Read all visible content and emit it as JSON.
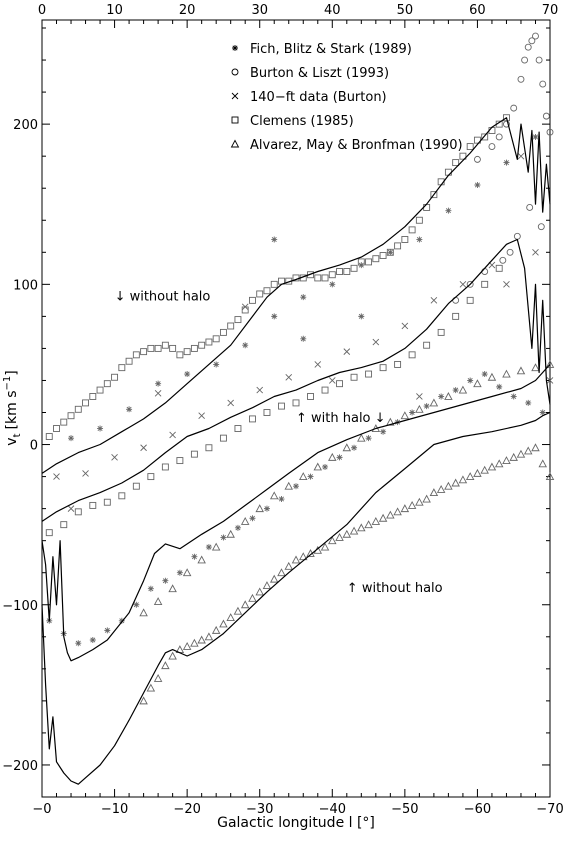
{
  "chart_data": {
    "type": "scatter",
    "title": "",
    "xlabel": "Galactic longitude l [°]",
    "ylabel_main": "v",
    "ylabel_sub": "t",
    "ylabel_unit": "[km s",
    "ylabel_exp": "−1",
    "ylabel_close": "]",
    "xlim": [
      0,
      -70
    ],
    "ylim": [
      -220,
      265
    ],
    "x_ticks": [
      0,
      -10,
      -20,
      -30,
      -40,
      -50,
      -60,
      -70
    ],
    "x_tick_labels": [
      "−0",
      "−10",
      "−20",
      "−30",
      "−40",
      "−50",
      "−60",
      "−70"
    ],
    "y_ticks": [
      -200,
      -100,
      0,
      100,
      200
    ],
    "y_tick_labels": [
      "−200",
      "−100",
      "0",
      "100",
      "200"
    ],
    "top_axis": {
      "ticks": [
        0,
        10,
        20,
        30,
        40,
        50,
        60,
        70
      ],
      "labels": [
        "0",
        "10",
        "20",
        "30",
        "40",
        "50",
        "60",
        "70"
      ]
    },
    "legend_position": "top-right",
    "legend": [
      {
        "marker": "asterisk",
        "label": "Fich, Blitz & Stark (1989)"
      },
      {
        "marker": "circle",
        "label": "Burton & Liszt (1993)"
      },
      {
        "marker": "cross",
        "label": "140−ft data (Burton)"
      },
      {
        "marker": "square",
        "label": "Clemens (1985)"
      },
      {
        "marker": "triangle",
        "label": "Alvarez, May & Bronfman (1990)"
      }
    ],
    "annotations": [
      {
        "text": "↓ without halo",
        "x": -10,
        "y": 90
      },
      {
        "text": "↑ with halo ↓",
        "x": -35,
        "y": 14
      },
      {
        "text": "↑ without halo",
        "x": -42,
        "y": -92
      }
    ],
    "lines": [
      {
        "x": [
          0,
          -2,
          -5,
          -8,
          -11,
          -14,
          -17,
          -20,
          -23,
          -26,
          -29,
          -31,
          -33,
          -35,
          -38,
          -41,
          -44,
          -47,
          -50,
          -53,
          -56,
          -59,
          -62,
          -64,
          -65.5,
          -66,
          -67,
          -67.5,
          -68,
          -68.5,
          -69,
          -69.5,
          -70
        ],
        "y": [
          -18,
          -12,
          -5,
          0,
          8,
          16,
          26,
          38,
          50,
          62,
          80,
          92,
          100,
          103,
          108,
          112,
          117,
          125,
          136,
          150,
          168,
          182,
          198,
          204,
          178,
          200,
          170,
          196,
          150,
          195,
          145,
          175,
          150
        ]
      },
      {
        "x": [
          0,
          -2,
          -5,
          -8,
          -11,
          -14,
          -17,
          -20,
          -23,
          -26,
          -29,
          -32,
          -35,
          -38,
          -41,
          -44,
          -47,
          -50,
          -53,
          -56,
          -59,
          -62,
          -64,
          -65.5,
          -66.5,
          -67.5,
          -68,
          -68.5,
          -69,
          -69.5,
          -70
        ],
        "y": [
          -48,
          -42,
          -35,
          -30,
          -24,
          -16,
          -5,
          5,
          10,
          17,
          23,
          30,
          34,
          40,
          45,
          48,
          52,
          60,
          72,
          88,
          100,
          115,
          125,
          128,
          110,
          60,
          100,
          45,
          90,
          40,
          25
        ]
      },
      {
        "x": [
          0,
          -0.5,
          -1,
          -1.5,
          -2,
          -2.5,
          -3,
          -3.5,
          -4,
          -5,
          -7,
          -9,
          -12,
          -14,
          -15.5,
          -17,
          -19,
          -22,
          -25,
          -28,
          -31,
          -34,
          -38,
          -42,
          -46,
          -50,
          -54,
          -58,
          -62,
          -66,
          -68,
          -69,
          -70
        ],
        "y": [
          -60,
          -75,
          -110,
          -70,
          -100,
          -60,
          -120,
          -130,
          -135,
          -133,
          -128,
          -122,
          -105,
          -85,
          -68,
          -62,
          -65,
          -56,
          -48,
          -38,
          -28,
          -18,
          -5,
          3,
          10,
          15,
          20,
          25,
          30,
          35,
          40,
          45,
          50
        ]
      },
      {
        "x": [
          0,
          -0.5,
          -1,
          -1.5,
          -2,
          -3,
          -4,
          -5,
          -6,
          -8,
          -10,
          -12,
          -14,
          -16,
          -17,
          -18,
          -20,
          -22,
          -25,
          -28,
          -31,
          -34,
          -38,
          -42,
          -46,
          -50,
          -54,
          -58,
          -62,
          -66,
          -68,
          -69,
          -70
        ],
        "y": [
          -100,
          -150,
          -190,
          -170,
          -198,
          -205,
          -210,
          -212,
          -208,
          -200,
          -188,
          -172,
          -155,
          -138,
          -130,
          -128,
          -132,
          -128,
          -118,
          -105,
          -92,
          -80,
          -65,
          -50,
          -30,
          -15,
          0,
          5,
          8,
          12,
          15,
          18,
          20
        ]
      }
    ],
    "series": [
      {
        "name": "Fich, Blitz & Stark (1989)",
        "marker": "asterisk",
        "x": [
          -1,
          -3,
          -5,
          -7,
          -9,
          -11,
          -13,
          -15,
          -17,
          -19,
          -21,
          -23,
          -25,
          -27,
          -29,
          -31,
          -33,
          -35,
          -37,
          -39,
          -41,
          -43,
          -45,
          -47,
          -49,
          -51,
          -53,
          -55,
          -57,
          -59,
          -61,
          -63,
          -65,
          -67,
          -69,
          -4,
          -8,
          -12,
          -16,
          -20,
          -24,
          -28,
          -32,
          -36,
          -40,
          -44,
          -48,
          -52,
          -56,
          -60,
          -64,
          -68,
          -32,
          -44,
          -36
        ],
        "y": [
          -110,
          -118,
          -124,
          -122,
          -116,
          -110,
          -100,
          -90,
          -85,
          -80,
          -70,
          -64,
          -58,
          -52,
          -46,
          -40,
          -34,
          -26,
          -20,
          -14,
          -8,
          -2,
          4,
          8,
          14,
          20,
          24,
          30,
          34,
          40,
          44,
          36,
          30,
          26,
          20,
          4,
          10,
          22,
          38,
          44,
          50,
          62,
          80,
          92,
          100,
          112,
          120,
          128,
          146,
          162,
          176,
          192,
          128,
          80,
          66
        ]
      },
      {
        "name": "Burton & Liszt (1993)",
        "marker": "circle",
        "x": [
          -60,
          -62,
          -63,
          -64,
          -65,
          -66,
          -66.5,
          -67,
          -67.5,
          -68,
          -68.5,
          -69,
          -69.5,
          -70,
          -61,
          -63.5,
          -64.5,
          -65.5,
          -67.2,
          -68.8,
          -59,
          -57
        ],
        "y": [
          178,
          186,
          192,
          200,
          210,
          228,
          240,
          248,
          252,
          255,
          240,
          225,
          205,
          195,
          108,
          115,
          120,
          130,
          148,
          136,
          100,
          90
        ]
      },
      {
        "name": "140−ft data (Burton)",
        "marker": "cross",
        "x": [
          -2,
          -6,
          -10,
          -14,
          -18,
          -22,
          -26,
          -30,
          -34,
          -38,
          -42,
          -46,
          -50,
          -54,
          -58,
          -62,
          -66,
          -68,
          -70,
          -4,
          -16,
          -28,
          -40,
          -52,
          -64
        ],
        "y": [
          -20,
          -18,
          -8,
          -2,
          6,
          18,
          26,
          34,
          42,
          50,
          58,
          64,
          74,
          90,
          100,
          112,
          180,
          120,
          40,
          -40,
          32,
          86,
          40,
          30,
          100
        ]
      },
      {
        "name": "Clemens (1985)",
        "marker": "square",
        "x": [
          -1,
          -2,
          -3,
          -4,
          -5,
          -6,
          -7,
          -8,
          -9,
          -10,
          -11,
          -12,
          -13,
          -14,
          -15,
          -16,
          -17,
          -18,
          -19,
          -20,
          -21,
          -22,
          -23,
          -24,
          -25,
          -26,
          -27,
          -28,
          -29,
          -30,
          -31,
          -32,
          -33,
          -34,
          -35,
          -36,
          -37,
          -38,
          -39,
          -40,
          -41,
          -42,
          -43,
          -44,
          -45,
          -46,
          -47,
          -48,
          -49,
          -50,
          -51,
          -52,
          -53,
          -54,
          -55,
          -56,
          -57,
          -58,
          -59,
          -60,
          -61,
          -62,
          -63,
          -64,
          -1,
          -3,
          -5,
          -7,
          -9,
          -11,
          -13,
          -15,
          -17,
          -19,
          -21,
          -23,
          -25,
          -27,
          -29,
          -31,
          -33,
          -35,
          -37,
          -39,
          -41,
          -43,
          -45,
          -47,
          -49,
          -51,
          -53,
          -55,
          -57,
          -59,
          -61,
          -63
        ],
        "y": [
          5,
          10,
          14,
          18,
          22,
          26,
          30,
          34,
          38,
          42,
          48,
          52,
          56,
          58,
          60,
          60,
          62,
          60,
          56,
          58,
          60,
          62,
          64,
          66,
          70,
          74,
          78,
          84,
          90,
          94,
          96,
          100,
          102,
          102,
          104,
          104,
          106,
          104,
          104,
          106,
          108,
          108,
          110,
          114,
          114,
          116,
          118,
          120,
          124,
          128,
          134,
          140,
          148,
          156,
          164,
          170,
          176,
          180,
          186,
          190,
          192,
          196,
          200,
          204,
          -55,
          -50,
          -42,
          -38,
          -36,
          -32,
          -26,
          -20,
          -14,
          -10,
          -6,
          -2,
          4,
          10,
          16,
          20,
          24,
          26,
          30,
          34,
          38,
          42,
          44,
          48,
          50,
          56,
          62,
          70,
          80,
          90,
          100,
          110
        ]
      },
      {
        "name": "Alvarez, May & Bronfman (1990)",
        "marker": "triangle",
        "x": [
          -14,
          -15,
          -16,
          -17,
          -18,
          -19,
          -20,
          -21,
          -22,
          -23,
          -24,
          -25,
          -26,
          -27,
          -28,
          -29,
          -30,
          -31,
          -32,
          -33,
          -34,
          -35,
          -36,
          -37,
          -38,
          -39,
          -40,
          -41,
          -42,
          -43,
          -44,
          -45,
          -46,
          -47,
          -48,
          -49,
          -50,
          -51,
          -52,
          -53,
          -54,
          -55,
          -56,
          -57,
          -58,
          -59,
          -60,
          -61,
          -62,
          -63,
          -64,
          -65,
          -66,
          -67,
          -68,
          -69,
          -70,
          -14,
          -16,
          -18,
          -20,
          -22,
          -24,
          -26,
          -28,
          -30,
          -32,
          -34,
          -36,
          -38,
          -40,
          -42,
          -44,
          -46,
          -48,
          -50,
          -52,
          -54,
          -56,
          -58,
          -60,
          -62,
          -64,
          -66,
          -68,
          -70
        ],
        "y": [
          -160,
          -152,
          -146,
          -138,
          -132,
          -128,
          -126,
          -124,
          -122,
          -120,
          -116,
          -112,
          -108,
          -104,
          -100,
          -96,
          -92,
          -88,
          -84,
          -80,
          -76,
          -72,
          -70,
          -68,
          -66,
          -64,
          -60,
          -58,
          -56,
          -54,
          -52,
          -50,
          -48,
          -46,
          -44,
          -42,
          -40,
          -38,
          -36,
          -34,
          -30,
          -28,
          -26,
          -24,
          -22,
          -20,
          -18,
          -16,
          -14,
          -12,
          -10,
          -8,
          -6,
          -4,
          -2,
          -12,
          -20,
          -105,
          -98,
          -90,
          -80,
          -72,
          -64,
          -56,
          -48,
          -40,
          -32,
          -26,
          -20,
          -14,
          -8,
          -2,
          4,
          10,
          14,
          18,
          22,
          26,
          30,
          34,
          38,
          42,
          44,
          46,
          48,
          50
        ]
      }
    ]
  }
}
